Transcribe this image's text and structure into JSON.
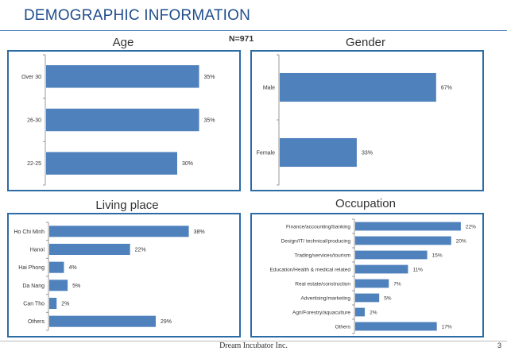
{
  "slide": {
    "title": "DEMOGRAPHIC INFORMATION",
    "sample_size": "N=971",
    "footer": "Dream Incubator Inc.",
    "page_number": "3"
  },
  "colors": {
    "bar": "#4f81bd",
    "panel_border": "#2b6ca3",
    "title": "#1f4e8c"
  },
  "chart_data": [
    {
      "type": "bar",
      "orientation": "horizontal",
      "title": "Age",
      "categories": [
        "Over 30",
        "26-30",
        "22-25"
      ],
      "values": [
        35,
        35,
        30
      ],
      "labels": [
        "35%",
        "35%",
        "30%"
      ],
      "xlim": [
        0,
        40
      ]
    },
    {
      "type": "bar",
      "orientation": "horizontal",
      "title": "Gender",
      "categories": [
        "Male",
        "Female"
      ],
      "values": [
        67,
        33
      ],
      "labels": [
        "67%",
        "33%"
      ],
      "xlim": [
        0,
        80
      ]
    },
    {
      "type": "bar",
      "orientation": "horizontal",
      "title": "Living place",
      "categories": [
        "Ho Chi Minh",
        "Hanoi",
        "Hai Phong",
        "Da Nang",
        "Can Tho",
        "Others"
      ],
      "values": [
        38,
        22,
        4,
        5,
        2,
        29
      ],
      "labels": [
        "38%",
        "22%",
        "4%",
        "5%",
        "2%",
        "29%"
      ],
      "xlim": [
        0,
        50
      ]
    },
    {
      "type": "bar",
      "orientation": "horizontal",
      "title": "Occupation",
      "categories": [
        "Finance/accounting/banking",
        "Design/IT/ technical/producing",
        "Trading/services/tourism",
        "Education/Health & medical related",
        "Real estate/construction",
        "Advertising/marketing",
        "Agri/Forestry/aquaculture",
        "Others"
      ],
      "values": [
        22,
        20,
        15,
        11,
        7,
        5,
        2,
        17
      ],
      "labels": [
        "22%",
        "20%",
        "15%",
        "11%",
        "7%",
        "5%",
        "2%",
        "17%"
      ],
      "xlim": [
        0,
        25
      ]
    }
  ]
}
